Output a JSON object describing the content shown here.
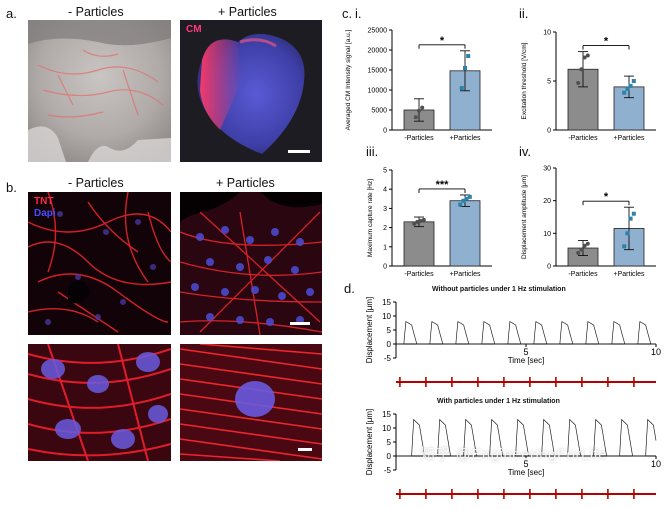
{
  "panel_a": {
    "label": "a.",
    "titles": [
      "- Particles",
      "+ Particles"
    ],
    "image_tag": "CM"
  },
  "panel_b": {
    "label": "b.",
    "titles": [
      "- Particles",
      "+ Particles"
    ],
    "tags": [
      "TNT",
      "Dapi"
    ]
  },
  "panel_c": {
    "label": "c.",
    "sub_labels": [
      "i.",
      "ii.",
      "iii.",
      "iv."
    ]
  },
  "panel_d": {
    "label": "d.",
    "title_without": "Without particles under 1 Hz stimulation",
    "title_with": "With particles under 1 Hz stimulation"
  },
  "watermark": "知乎 @EngineeringForLife",
  "colors": {
    "gray_bar": "#8c8c8c",
    "blue_bar": "#8fb0cf",
    "point_gray": "#505050",
    "point_blue": "#2d82a8",
    "pacing_red": "#b30000",
    "tnt": "#ff3333",
    "dapi": "#5b5bff"
  },
  "chart_data": [
    {
      "id": "c-i",
      "type": "bar",
      "categories": [
        "-Particles",
        "+Particles"
      ],
      "values": [
        5000,
        14800
      ],
      "error": [
        2800,
        5000
      ],
      "points": [
        [
          3200,
          4800,
          5600
        ],
        [
          10500,
          15500,
          18500
        ]
      ],
      "ylabel": "Averaged CM Intensity signal [a.u.]",
      "ylim": [
        0,
        25000
      ],
      "yticks": [
        "0",
        "5000",
        "10000",
        "15000",
        "20000",
        "25000"
      ],
      "significance": "*"
    },
    {
      "id": "c-ii",
      "type": "bar",
      "categories": [
        "-Particles",
        "+Particles"
      ],
      "values": [
        6.2,
        4.4
      ],
      "error": [
        1.8,
        1.1
      ],
      "points": [
        [
          4.8,
          6.2,
          7.4,
          7.6
        ],
        [
          3.8,
          4.2,
          4.5,
          5.0
        ]
      ],
      "ylabel": "Excitation threshold [V/cm]",
      "ylim": [
        0,
        10
      ],
      "yticks": [
        "0",
        "5",
        "10"
      ],
      "significance": "*"
    },
    {
      "id": "c-iii",
      "type": "bar",
      "categories": [
        "-Particles",
        "+Particles"
      ],
      "values": [
        2.3,
        3.4
      ],
      "error": [
        0.25,
        0.3
      ],
      "points": [
        [
          2.2,
          2.3,
          2.35,
          2.4
        ],
        [
          3.2,
          3.4,
          3.5,
          3.6
        ]
      ],
      "ylabel": "Maximum capture rate [Hz]",
      "ylim": [
        0,
        5
      ],
      "yticks": [
        "0",
        "1",
        "2",
        "3",
        "4",
        "5"
      ],
      "significance": "***"
    },
    {
      "id": "c-iv",
      "type": "bar",
      "categories": [
        "-Particles",
        "+Particles"
      ],
      "values": [
        5.5,
        11.5
      ],
      "error": [
        2.3,
        6.5
      ],
      "points": [
        [
          4.0,
          5.0,
          6.2,
          6.8
        ],
        [
          6.0,
          10.0,
          14.5,
          16.0
        ]
      ],
      "ylabel": "Displacement amplitude [μm]",
      "ylim": [
        0,
        30
      ],
      "yticks": [
        "0",
        "10",
        "20",
        "30"
      ],
      "significance": "*"
    },
    {
      "id": "d-without",
      "type": "line",
      "xlabel": "Time [sec]",
      "ylabel": "Displacement [μm]",
      "xlim": [
        0,
        10
      ],
      "ylim": [
        -5,
        15
      ],
      "xticks": [
        "5",
        "10"
      ],
      "yticks": [
        "-5",
        "0",
        "5",
        "10",
        "15"
      ],
      "pulse_times": [
        0.3,
        1.3,
        2.3,
        3.3,
        4.3,
        5.3,
        6.3,
        7.3,
        8.3,
        9.3
      ],
      "peak_amplitude": 8,
      "stim_times": [
        0.15,
        1.15,
        2.15,
        3.15,
        4.15,
        5.15,
        6.15,
        7.15,
        8.15,
        9.15
      ]
    },
    {
      "id": "d-with",
      "type": "line",
      "xlabel": "Time [sec]",
      "ylabel": "Displacement [μm]",
      "xlim": [
        0,
        10
      ],
      "ylim": [
        -5,
        15
      ],
      "xticks": [
        "5",
        "10"
      ],
      "yticks": [
        "-5",
        "0",
        "5",
        "10",
        "15"
      ],
      "pulse_times": [
        0.6,
        1.6,
        2.6,
        3.6,
        4.6,
        5.6,
        6.6,
        7.6,
        8.6,
        9.6
      ],
      "peak_amplitude": 13,
      "stim_times": [
        0.15,
        1.15,
        2.15,
        3.15,
        4.15,
        5.15,
        6.15,
        7.15,
        8.15,
        9.15
      ]
    }
  ]
}
